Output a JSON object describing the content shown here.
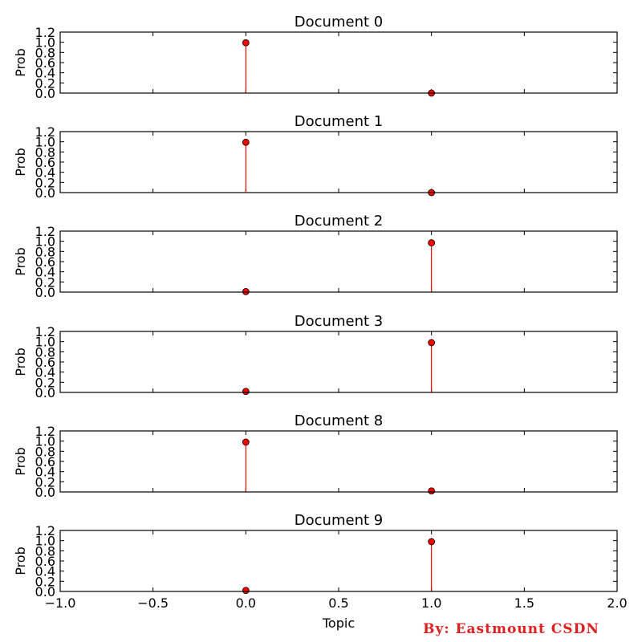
{
  "watermark": "By: Eastmount CSDN",
  "colors": {
    "stem": "#ff0000",
    "marker": "#ff0000",
    "marker_edge": "#000000"
  },
  "chart_data": [
    {
      "type": "stem",
      "title": "Document 0",
      "xlabel": "",
      "ylabel": "Prob",
      "xlim": [
        -1.0,
        2.0
      ],
      "ylim": [
        0.0,
        1.2
      ],
      "x": [
        0,
        1
      ],
      "values": [
        0.99,
        0.0
      ]
    },
    {
      "type": "stem",
      "title": "Document 1",
      "xlabel": "",
      "ylabel": "Prob",
      "xlim": [
        -1.0,
        2.0
      ],
      "ylim": [
        0.0,
        1.2
      ],
      "x": [
        0,
        1
      ],
      "values": [
        0.99,
        0.0
      ]
    },
    {
      "type": "stem",
      "title": "Document 2",
      "xlabel": "",
      "ylabel": "Prob",
      "xlim": [
        -1.0,
        2.0
      ],
      "ylim": [
        0.0,
        1.2
      ],
      "x": [
        0,
        1
      ],
      "values": [
        0.01,
        0.97
      ]
    },
    {
      "type": "stem",
      "title": "Document 3",
      "xlabel": "",
      "ylabel": "Prob",
      "xlim": [
        -1.0,
        2.0
      ],
      "ylim": [
        0.0,
        1.2
      ],
      "x": [
        0,
        1
      ],
      "values": [
        0.02,
        0.98
      ]
    },
    {
      "type": "stem",
      "title": "Document 8",
      "xlabel": "",
      "ylabel": "Prob",
      "xlim": [
        -1.0,
        2.0
      ],
      "ylim": [
        0.0,
        1.2
      ],
      "x": [
        0,
        1
      ],
      "values": [
        0.98,
        0.02
      ]
    },
    {
      "type": "stem",
      "title": "Document 9",
      "xlabel": "Topic",
      "ylabel": "Prob",
      "xlim": [
        -1.0,
        2.0
      ],
      "ylim": [
        0.0,
        1.2
      ],
      "x": [
        0,
        1
      ],
      "values": [
        0.02,
        0.98
      ]
    }
  ],
  "y_ticks": [
    "0.0",
    "0.2",
    "0.4",
    "0.6",
    "0.8",
    "1.0",
    "1.2"
  ],
  "x_ticks": [
    "−1.0",
    "−0.5",
    "0.0",
    "0.5",
    "1.0",
    "1.5",
    "2.0"
  ]
}
